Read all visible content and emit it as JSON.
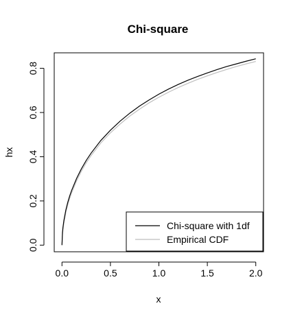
{
  "chart_data": {
    "type": "line",
    "title": "Chi-square",
    "xlabel": "x",
    "ylabel": "hx",
    "xlim": [
      -0.08,
      2.08
    ],
    "ylim": [
      -0.03,
      0.87
    ],
    "xticks": [
      0.0,
      0.5,
      1.0,
      1.5,
      2.0
    ],
    "xtick_labels": [
      "0.0",
      "0.5",
      "1.0",
      "1.5",
      "2.0"
    ],
    "yticks": [
      0.0,
      0.2,
      0.4,
      0.6,
      0.8
    ],
    "ytick_labels": [
      "0.0",
      "0.2",
      "0.4",
      "0.6",
      "0.8"
    ],
    "grid": false,
    "legend_position": "bottom-right",
    "series": [
      {
        "name": "Chi-square with 1df",
        "color": "#000000",
        "x": [
          0.0,
          0.005,
          0.01,
          0.02,
          0.04,
          0.06,
          0.08,
          0.1,
          0.15,
          0.2,
          0.25,
          0.3,
          0.4,
          0.5,
          0.6,
          0.7,
          0.8,
          0.9,
          1.0,
          1.1,
          1.2,
          1.3,
          1.4,
          1.5,
          1.6,
          1.7,
          1.8,
          1.9,
          2.0
        ],
        "values": [
          0.0,
          0.056,
          0.08,
          0.112,
          0.159,
          0.194,
          0.223,
          0.248,
          0.301,
          0.345,
          0.383,
          0.416,
          0.473,
          0.52,
          0.561,
          0.597,
          0.629,
          0.657,
          0.683,
          0.706,
          0.727,
          0.746,
          0.763,
          0.779,
          0.794,
          0.808,
          0.82,
          0.832,
          0.843
        ]
      },
      {
        "name": "Empirical CDF",
        "color": "#bebebe",
        "x": [
          0.0,
          0.005,
          0.01,
          0.02,
          0.04,
          0.06,
          0.08,
          0.1,
          0.15,
          0.2,
          0.25,
          0.3,
          0.4,
          0.5,
          0.6,
          0.7,
          0.8,
          0.9,
          1.0,
          1.1,
          1.2,
          1.3,
          1.4,
          1.5,
          1.6,
          1.7,
          1.8,
          1.9,
          2.0
        ],
        "values": [
          0.0,
          0.045,
          0.068,
          0.1,
          0.148,
          0.183,
          0.212,
          0.237,
          0.29,
          0.334,
          0.372,
          0.405,
          0.462,
          0.508,
          0.548,
          0.584,
          0.615,
          0.644,
          0.669,
          0.692,
          0.713,
          0.732,
          0.75,
          0.766,
          0.781,
          0.795,
          0.808,
          0.82,
          0.831
        ]
      }
    ]
  }
}
